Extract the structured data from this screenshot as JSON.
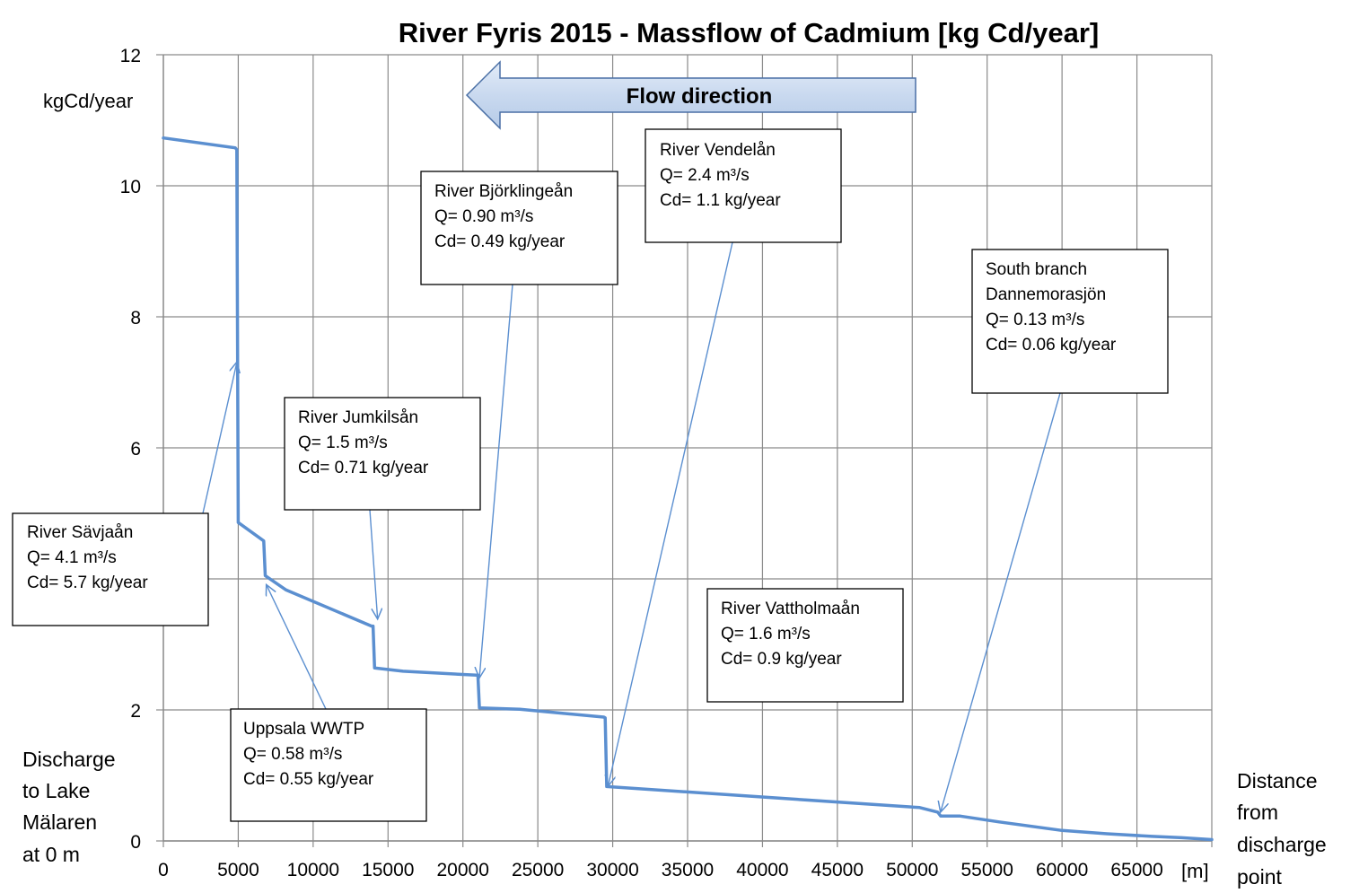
{
  "chart_data": {
    "type": "line",
    "title": "River Fyris 2015  - Massflow of Cadmium [kg Cd/year]",
    "ylabel": "kgCd/year",
    "xunit": "[m]",
    "x_axis_note": [
      "Distance",
      "from",
      "discharge",
      "point"
    ],
    "y_axis_note": [
      "Discharge",
      "to Lake",
      "Mälaren",
      "at 0 m"
    ],
    "xlim": [
      0,
      70000
    ],
    "ylim": [
      0,
      12
    ],
    "xticks": [
      0,
      5000,
      10000,
      15000,
      20000,
      25000,
      30000,
      35000,
      40000,
      45000,
      50000,
      55000,
      60000,
      65000
    ],
    "xtick_labels": [
      "0",
      "5000",
      "10000",
      "15000",
      "20000",
      "25000",
      "30000",
      "35000",
      "40000",
      "45000",
      "50000",
      "55000",
      "60000",
      "65000"
    ],
    "yticks": [
      0,
      2,
      4,
      6,
      8,
      10,
      12
    ],
    "ytick_labels": [
      "0",
      "2",
      "",
      "6",
      "8",
      "10",
      "12"
    ],
    "grid": true,
    "line_color": "#5b8fd0",
    "series": [
      {
        "x": [
          0,
          4800,
          4900,
          5000,
          6700,
          6800,
          8200,
          13900,
          14000,
          14100,
          16000,
          20900,
          21000,
          21100,
          23800,
          29400,
          29500,
          29600,
          50500,
          51700,
          51900,
          53200,
          55800,
          60000,
          63000,
          66000,
          68000,
          70000
        ],
        "y": [
          10.73,
          10.58,
          10.55,
          4.86,
          4.58,
          4.05,
          3.83,
          3.28,
          3.28,
          2.64,
          2.59,
          2.53,
          2.53,
          2.03,
          2.01,
          1.89,
          1.88,
          0.83,
          0.51,
          0.44,
          0.38,
          0.38,
          0.29,
          0.16,
          0.11,
          0.07,
          0.05,
          0.02
        ]
      }
    ],
    "flow_label": "Flow direction",
    "annotations": [
      {
        "lines": [
          "River Sävjaån",
          "Q= 4.1 m³/s",
          "Cd= 5.7 kg/year"
        ],
        "target_x": 4900,
        "target_y": 7.3
      },
      {
        "lines": [
          "Uppsala WWTP",
          "Q= 0.58 m³/s",
          "Cd= 0.55 kg/year"
        ],
        "target_x": 6900,
        "target_y": 3.9
      },
      {
        "lines": [
          "River Jumkilsån",
          "Q= 1.5 m³/s",
          "Cd= 0.71 kg/year"
        ],
        "target_x": 14300,
        "target_y": 3.4
      },
      {
        "lines": [
          "River Björklingeån",
          "Q= 0.90 m³/s",
          "Cd= 0.49 kg/year"
        ],
        "target_x": 21100,
        "target_y": 2.5
      },
      {
        "lines": [
          "River Vendelån",
          "Q= 2.4 m³/s",
          "Cd= 1.1 kg/year"
        ],
        "target_x": 29700,
        "target_y": 0.85
      },
      {
        "lines": [
          "River Vattholmaån",
          "Q= 1.6 m³/s",
          "Cd= 0.9 kg/year"
        ]
      },
      {
        "lines": [
          "South branch",
          "Dannemorasjön",
          "Q= 0.13 m³/s",
          "Cd=  0.06 kg/year"
        ],
        "target_x": 51900,
        "target_y": 0.45
      }
    ]
  }
}
